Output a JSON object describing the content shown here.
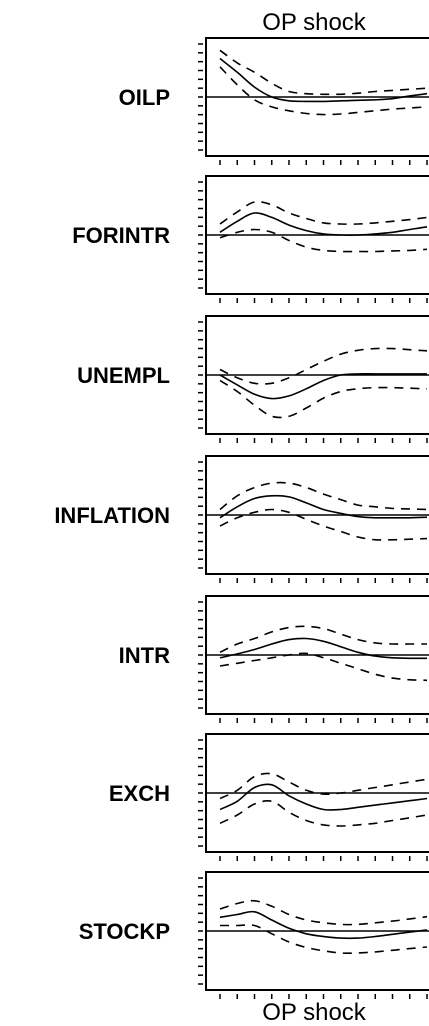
{
  "figure": {
    "title_top": "OP shock",
    "title_bottom": "OP shock"
  },
  "chart_data": [
    {
      "type": "line",
      "title": "OILP",
      "x": [
        0,
        1,
        2,
        3,
        4,
        5,
        6,
        7,
        8,
        9,
        10,
        11,
        12
      ],
      "ylim": [
        -1,
        1
      ],
      "series": [
        {
          "role": "response",
          "values": [
            0.7,
            0.45,
            0.18,
            0.0,
            -0.07,
            -0.08,
            -0.08,
            -0.07,
            -0.06,
            -0.05,
            -0.03,
            0.02,
            0.06
          ]
        },
        {
          "role": "upper",
          "values": [
            0.85,
            0.62,
            0.45,
            0.25,
            0.1,
            0.06,
            0.05,
            0.05,
            0.07,
            0.1,
            0.12,
            0.14,
            0.16
          ]
        },
        {
          "role": "lower",
          "values": [
            0.55,
            0.22,
            -0.05,
            -0.18,
            -0.25,
            -0.3,
            -0.32,
            -0.31,
            -0.28,
            -0.25,
            -0.22,
            -0.2,
            -0.18
          ]
        }
      ]
    },
    {
      "type": "line",
      "title": "FORINTR",
      "x": [
        0,
        1,
        2,
        3,
        4,
        5,
        6,
        7,
        8,
        9,
        10,
        11,
        12
      ],
      "ylim": [
        -1,
        1
      ],
      "series": [
        {
          "role": "response",
          "values": [
            0.05,
            0.25,
            0.4,
            0.32,
            0.18,
            0.08,
            0.02,
            0.0,
            0.0,
            0.02,
            0.05,
            0.1,
            0.15
          ]
        },
        {
          "role": "upper",
          "values": [
            0.2,
            0.42,
            0.6,
            0.55,
            0.4,
            0.3,
            0.22,
            0.2,
            0.2,
            0.22,
            0.25,
            0.28,
            0.32
          ]
        },
        {
          "role": "lower",
          "values": [
            -0.05,
            0.05,
            0.1,
            0.05,
            -0.1,
            -0.22,
            -0.28,
            -0.3,
            -0.3,
            -0.3,
            -0.29,
            -0.28,
            -0.26
          ]
        }
      ]
    },
    {
      "type": "line",
      "title": "UNEMPL",
      "x": [
        0,
        1,
        2,
        3,
        4,
        5,
        6,
        7,
        8,
        9,
        10,
        11,
        12
      ],
      "ylim": [
        -1,
        1
      ],
      "series": [
        {
          "role": "response",
          "values": [
            0.0,
            -0.18,
            -0.35,
            -0.43,
            -0.38,
            -0.25,
            -0.1,
            0.0,
            0.02,
            0.02,
            0.02,
            0.02,
            0.02
          ]
        },
        {
          "role": "upper",
          "values": [
            0.1,
            -0.05,
            -0.15,
            -0.15,
            -0.05,
            0.1,
            0.25,
            0.38,
            0.45,
            0.48,
            0.48,
            0.46,
            0.44
          ]
        },
        {
          "role": "lower",
          "values": [
            -0.1,
            -0.3,
            -0.55,
            -0.75,
            -0.75,
            -0.6,
            -0.42,
            -0.3,
            -0.25,
            -0.23,
            -0.23,
            -0.24,
            -0.25
          ]
        }
      ]
    },
    {
      "type": "line",
      "title": "INFLATION",
      "x": [
        0,
        1,
        2,
        3,
        4,
        5,
        6,
        7,
        8,
        9,
        10,
        11,
        12
      ],
      "ylim": [
        -1,
        1
      ],
      "series": [
        {
          "role": "response",
          "values": [
            -0.05,
            0.15,
            0.3,
            0.35,
            0.33,
            0.22,
            0.1,
            0.03,
            -0.03,
            -0.05,
            -0.05,
            -0.05,
            -0.04
          ]
        },
        {
          "role": "upper",
          "values": [
            0.1,
            0.35,
            0.5,
            0.58,
            0.58,
            0.5,
            0.38,
            0.28,
            0.18,
            0.15,
            0.12,
            0.11,
            0.1
          ]
        },
        {
          "role": "lower",
          "values": [
            -0.2,
            -0.05,
            0.05,
            0.1,
            0.05,
            -0.08,
            -0.2,
            -0.3,
            -0.4,
            -0.45,
            -0.45,
            -0.44,
            -0.43
          ]
        }
      ]
    },
    {
      "type": "line",
      "title": "INTR",
      "x": [
        0,
        1,
        2,
        3,
        4,
        5,
        6,
        7,
        8,
        9,
        10,
        11,
        12
      ],
      "ylim": [
        -1,
        1
      ],
      "series": [
        {
          "role": "response",
          "values": [
            -0.05,
            0.02,
            0.1,
            0.2,
            0.28,
            0.3,
            0.25,
            0.15,
            0.05,
            -0.02,
            -0.05,
            -0.06,
            -0.06
          ]
        },
        {
          "role": "upper",
          "values": [
            0.05,
            0.2,
            0.3,
            0.42,
            0.5,
            0.52,
            0.48,
            0.38,
            0.28,
            0.22,
            0.2,
            0.2,
            0.2
          ]
        },
        {
          "role": "lower",
          "values": [
            -0.2,
            -0.15,
            -0.1,
            -0.05,
            0.0,
            0.03,
            -0.05,
            -0.15,
            -0.25,
            -0.35,
            -0.42,
            -0.45,
            -0.46
          ]
        }
      ]
    },
    {
      "type": "line",
      "title": "EXCH",
      "x": [
        0,
        1,
        2,
        3,
        4,
        5,
        6,
        7,
        8,
        9,
        10,
        11,
        12
      ],
      "ylim": [
        -1,
        1
      ],
      "series": [
        {
          "role": "response",
          "values": [
            -0.3,
            -0.15,
            0.1,
            0.15,
            -0.05,
            -0.2,
            -0.3,
            -0.3,
            -0.26,
            -0.22,
            -0.18,
            -0.14,
            -0.1
          ]
        },
        {
          "role": "upper",
          "values": [
            -0.1,
            0.05,
            0.3,
            0.35,
            0.2,
            0.05,
            -0.02,
            0.0,
            0.05,
            0.1,
            0.15,
            0.2,
            0.25
          ]
        },
        {
          "role": "lower",
          "values": [
            -0.55,
            -0.4,
            -0.2,
            -0.15,
            -0.35,
            -0.5,
            -0.58,
            -0.6,
            -0.58,
            -0.55,
            -0.5,
            -0.45,
            -0.4
          ]
        }
      ]
    },
    {
      "type": "line",
      "title": "STOCKP",
      "x": [
        0,
        1,
        2,
        3,
        4,
        5,
        6,
        7,
        8,
        9,
        10,
        11,
        12
      ],
      "ylim": [
        -1,
        1
      ],
      "series": [
        {
          "role": "response",
          "values": [
            0.25,
            0.3,
            0.35,
            0.2,
            0.05,
            -0.05,
            -0.1,
            -0.13,
            -0.13,
            -0.1,
            -0.06,
            -0.02,
            0.02
          ]
        },
        {
          "role": "upper",
          "values": [
            0.4,
            0.5,
            0.55,
            0.45,
            0.3,
            0.2,
            0.15,
            0.12,
            0.12,
            0.15,
            0.18,
            0.22,
            0.26
          ]
        },
        {
          "role": "lower",
          "values": [
            0.1,
            0.1,
            0.1,
            -0.05,
            -0.2,
            -0.3,
            -0.36,
            -0.4,
            -0.4,
            -0.38,
            -0.35,
            -0.32,
            -0.29
          ]
        }
      ]
    }
  ]
}
